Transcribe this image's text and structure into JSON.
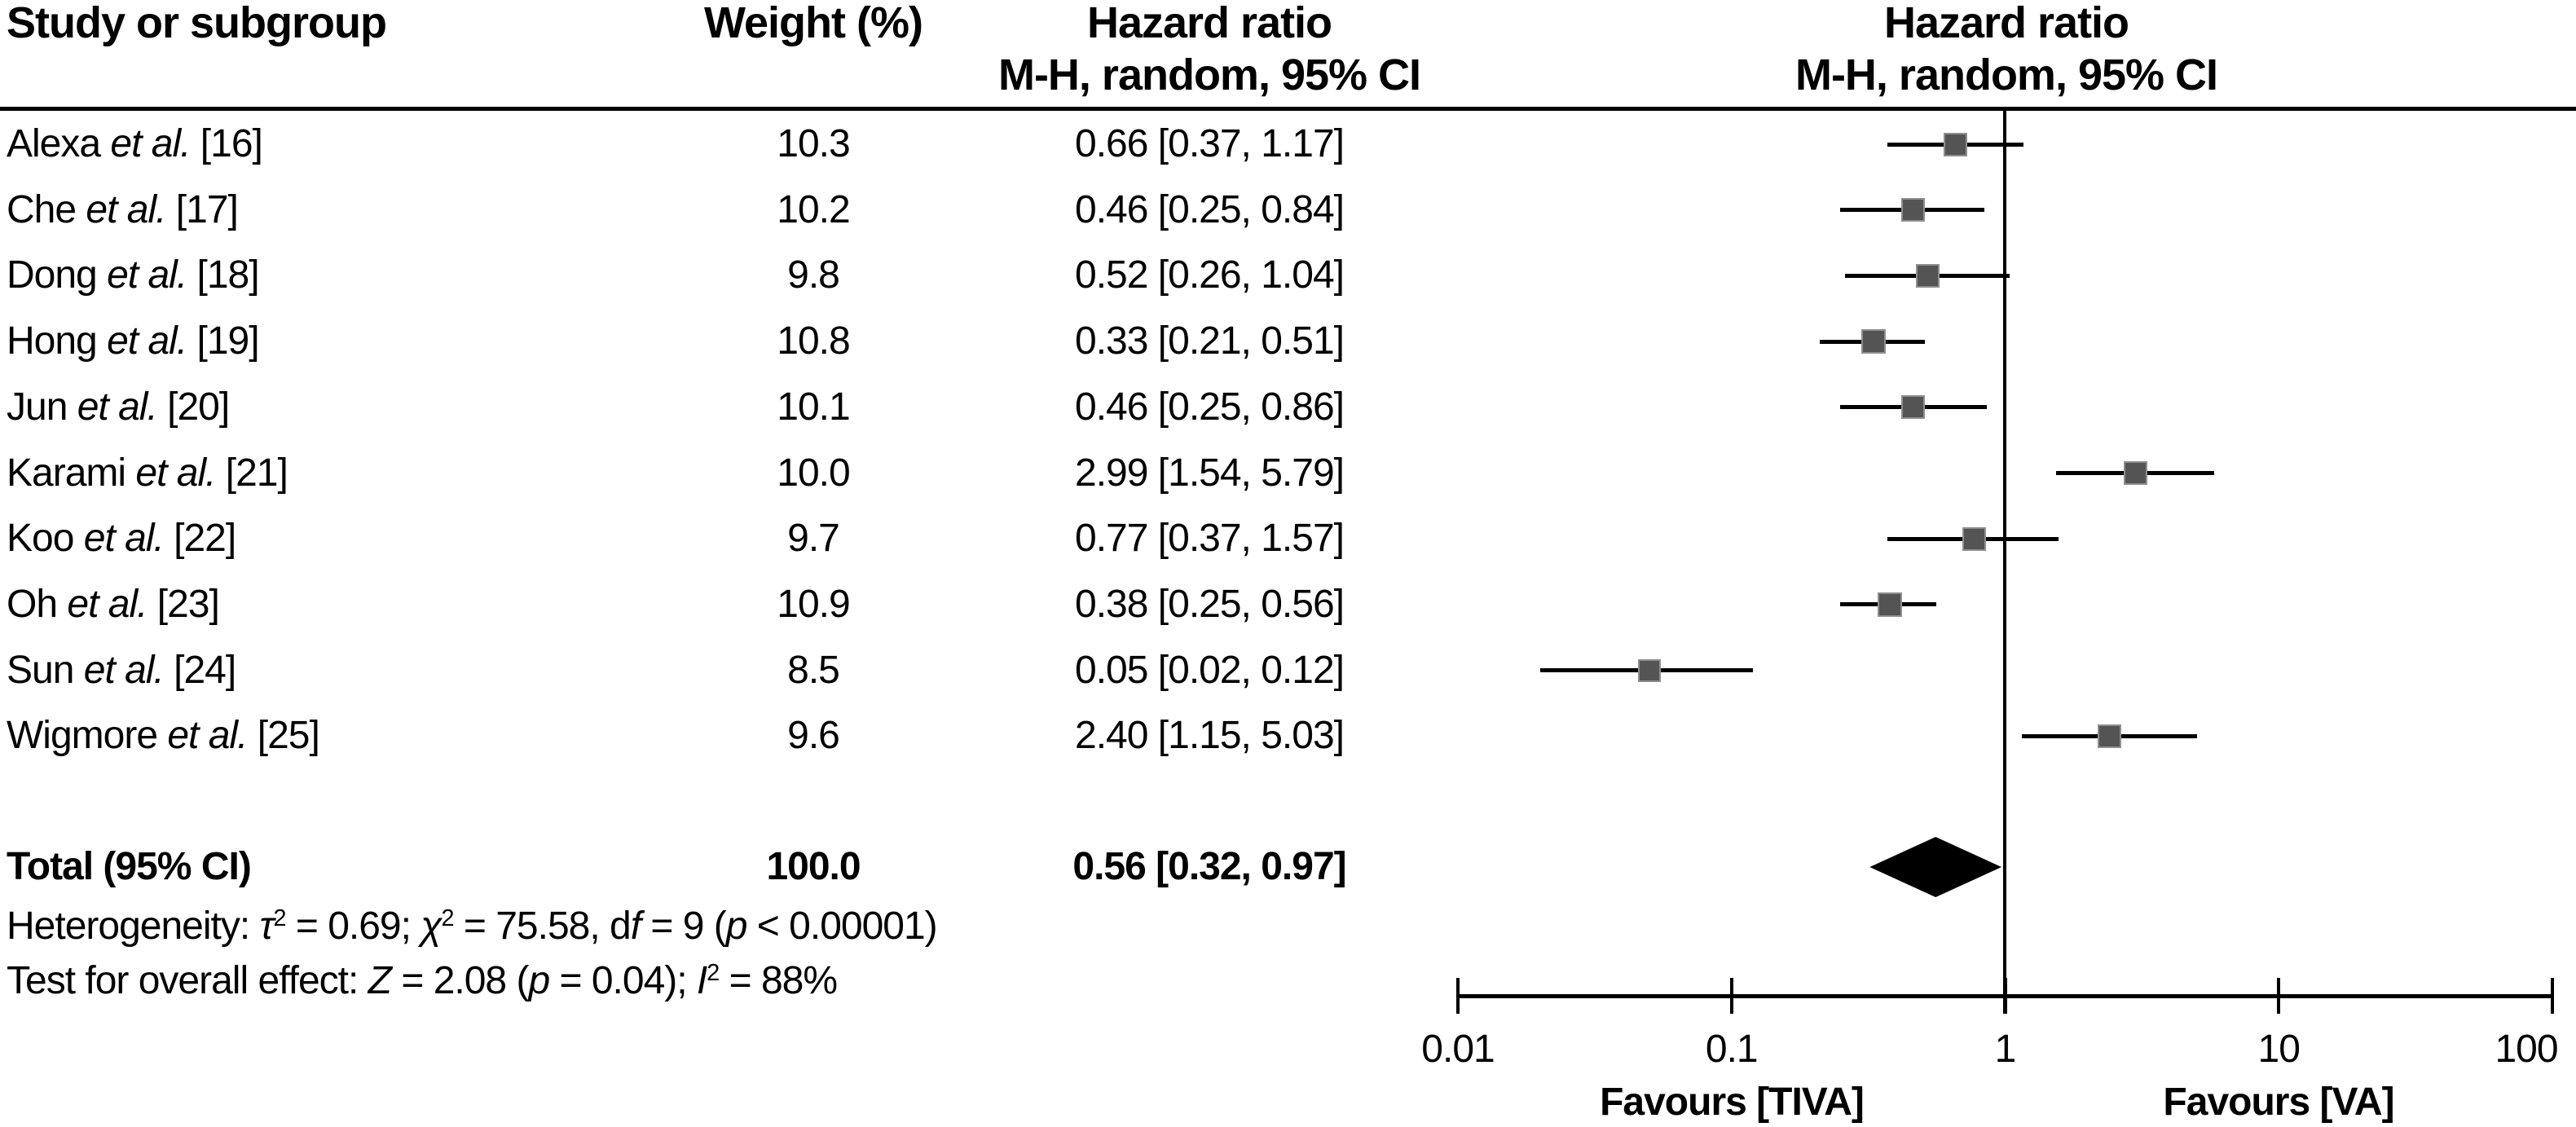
{
  "header": {
    "study": "Study or subgroup",
    "weight": "Weight (%)",
    "hr_text_line1": "Hazard ratio",
    "hr_text_line2": "M-H, random, 95% CI",
    "hr_plot_line1": "Hazard ratio",
    "hr_plot_line2": "M-H, random, 95% CI"
  },
  "chart_data": {
    "type": "scatter",
    "variant": "forest-plot",
    "x_scale": "log10",
    "x_range": [
      0.01,
      100
    ],
    "x_ticks": [
      0.01,
      0.1,
      1,
      10,
      100
    ],
    "x_tick_labels": [
      "0.01",
      "0.1",
      "1",
      "10",
      "100"
    ],
    "no_effect_line_x": 1,
    "favours_left": "Favours [TIVA]",
    "favours_right": "Favours [VA]",
    "studies": [
      {
        "name": "Alexa ",
        "etal": "et al.",
        "ref": " [16]",
        "weight_text": "10.3",
        "weight_pct": 10.3,
        "hr": 0.66,
        "ci_low": 0.37,
        "ci_high": 1.17,
        "hr_ci_text": "0.66 [0.37, 1.17]"
      },
      {
        "name": "Che ",
        "etal": "et al.",
        "ref": " [17]",
        "weight_text": "10.2",
        "weight_pct": 10.2,
        "hr": 0.46,
        "ci_low": 0.25,
        "ci_high": 0.84,
        "hr_ci_text": "0.46 [0.25, 0.84]"
      },
      {
        "name": "Dong ",
        "etal": "et al.",
        "ref": " [18]",
        "weight_text": "9.8",
        "weight_pct": 9.8,
        "hr": 0.52,
        "ci_low": 0.26,
        "ci_high": 1.04,
        "hr_ci_text": "0.52 [0.26, 1.04]"
      },
      {
        "name": "Hong ",
        "etal": "et al.",
        "ref": " [19]",
        "weight_text": "10.8",
        "weight_pct": 10.8,
        "hr": 0.33,
        "ci_low": 0.21,
        "ci_high": 0.51,
        "hr_ci_text": "0.33 [0.21, 0.51]"
      },
      {
        "name": "Jun ",
        "etal": "et al.",
        "ref": " [20]",
        "weight_text": "10.1",
        "weight_pct": 10.1,
        "hr": 0.46,
        "ci_low": 0.25,
        "ci_high": 0.86,
        "hr_ci_text": "0.46 [0.25, 0.86]"
      },
      {
        "name": "Karami ",
        "etal": "et al.",
        "ref": " [21]",
        "weight_text": "10.0",
        "weight_pct": 10.0,
        "hr": 2.99,
        "ci_low": 1.54,
        "ci_high": 5.79,
        "hr_ci_text": "2.99 [1.54, 5.79]"
      },
      {
        "name": "Koo ",
        "etal": "et al.",
        "ref": " [22]",
        "weight_text": "9.7",
        "weight_pct": 9.7,
        "hr": 0.77,
        "ci_low": 0.37,
        "ci_high": 1.57,
        "hr_ci_text": "0.77 [0.37, 1.57]"
      },
      {
        "name": "Oh ",
        "etal": "et al.",
        "ref": " [23]",
        "weight_text": "10.9",
        "weight_pct": 10.9,
        "hr": 0.38,
        "ci_low": 0.25,
        "ci_high": 0.56,
        "hr_ci_text": "0.38 [0.25, 0.56]"
      },
      {
        "name": "Sun ",
        "etal": "et al.",
        "ref": " [24]",
        "weight_text": "8.5",
        "weight_pct": 8.5,
        "hr": 0.05,
        "ci_low": 0.02,
        "ci_high": 0.12,
        "hr_ci_text": "0.05 [0.02, 0.12]"
      },
      {
        "name": "Wigmore ",
        "etal": "et al.",
        "ref": " [25]",
        "weight_text": "9.6",
        "weight_pct": 9.6,
        "hr": 2.4,
        "ci_low": 1.15,
        "ci_high": 5.03,
        "hr_ci_text": "2.40 [1.15, 5.03]"
      }
    ],
    "total": {
      "label": "Total (95% CI)",
      "weight_text": "100.0",
      "weight_pct": 100.0,
      "hr": 0.56,
      "ci_low": 0.32,
      "ci_high": 0.97,
      "hr_ci_text": "0.56 [0.32, 0.97]"
    }
  },
  "stats": {
    "heterogeneity_segments": [
      {
        "t": "Heterogeneity: "
      },
      {
        "t": "τ",
        "i": 1
      },
      {
        "t": "2",
        "s": 1
      },
      {
        "t": " = 0.69; "
      },
      {
        "t": "χ",
        "i": 1
      },
      {
        "t": "2",
        "s": 1
      },
      {
        "t": " = 75.58, d"
      },
      {
        "t": "f",
        "i": 1
      },
      {
        "t": " = 9 ("
      },
      {
        "t": "p",
        "i": 1
      },
      {
        "t": " < 0.00001)"
      }
    ],
    "overall_effect_segments": [
      {
        "t": "Test for overall effect: "
      },
      {
        "t": "Z",
        "i": 1
      },
      {
        "t": " = 2.08 ("
      },
      {
        "t": "p",
        "i": 1
      },
      {
        "t": " = 0.04); "
      },
      {
        "t": "I",
        "i": 1
      },
      {
        "t": "2",
        "s": 1
      },
      {
        "t": " = 88%"
      }
    ]
  },
  "colors": {
    "marker": "#545454",
    "marker_edge": "#8f8f8f",
    "line": "#000000",
    "diamond": "#000000",
    "background": "#ffffff"
  }
}
